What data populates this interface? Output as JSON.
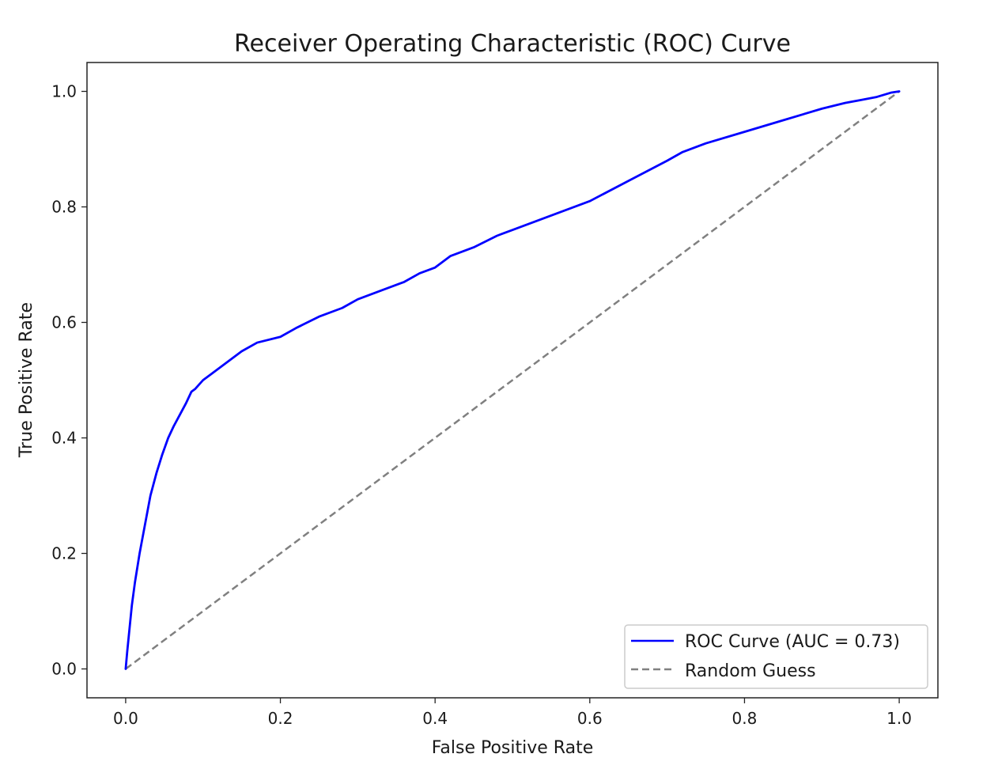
{
  "chart_data": {
    "type": "line",
    "title": "Receiver Operating Characteristic (ROC) Curve",
    "xlabel": "False Positive Rate",
    "ylabel": "True Positive Rate",
    "xlim": [
      -0.05,
      1.05
    ],
    "ylim": [
      -0.05,
      1.05
    ],
    "grid": false,
    "legend_position": "lower-right",
    "x_ticks": [
      0.0,
      0.2,
      0.4,
      0.6,
      0.8,
      1.0
    ],
    "x_tick_labels": [
      "0.0",
      "0.2",
      "0.4",
      "0.6",
      "0.8",
      "1.0"
    ],
    "y_ticks": [
      0.0,
      0.2,
      0.4,
      0.6,
      0.8,
      1.0
    ],
    "y_tick_labels": [
      "0.0",
      "0.2",
      "0.4",
      "0.6",
      "0.8",
      "1.0"
    ],
    "series": [
      {
        "name": "ROC Curve (AUC = 0.73)",
        "color": "#0000ff",
        "style": "solid",
        "x": [
          0.0,
          0.002,
          0.005,
          0.008,
          0.012,
          0.018,
          0.025,
          0.032,
          0.04,
          0.047,
          0.055,
          0.062,
          0.07,
          0.078,
          0.085,
          0.09,
          0.1,
          0.11,
          0.13,
          0.15,
          0.17,
          0.2,
          0.22,
          0.25,
          0.28,
          0.3,
          0.33,
          0.36,
          0.38,
          0.4,
          0.42,
          0.45,
          0.48,
          0.5,
          0.55,
          0.6,
          0.65,
          0.7,
          0.72,
          0.75,
          0.8,
          0.85,
          0.9,
          0.93,
          0.95,
          0.97,
          0.99,
          1.0
        ],
        "y": [
          0.0,
          0.03,
          0.07,
          0.11,
          0.15,
          0.2,
          0.25,
          0.3,
          0.34,
          0.37,
          0.4,
          0.42,
          0.44,
          0.46,
          0.48,
          0.485,
          0.5,
          0.51,
          0.53,
          0.55,
          0.565,
          0.575,
          0.59,
          0.61,
          0.625,
          0.64,
          0.655,
          0.67,
          0.685,
          0.695,
          0.715,
          0.73,
          0.75,
          0.76,
          0.785,
          0.81,
          0.845,
          0.88,
          0.895,
          0.91,
          0.93,
          0.95,
          0.97,
          0.98,
          0.985,
          0.99,
          0.998,
          1.0
        ]
      },
      {
        "name": "Random Guess",
        "color": "#808080",
        "style": "dashed",
        "x": [
          0.0,
          1.0
        ],
        "y": [
          0.0,
          1.0
        ]
      }
    ]
  }
}
